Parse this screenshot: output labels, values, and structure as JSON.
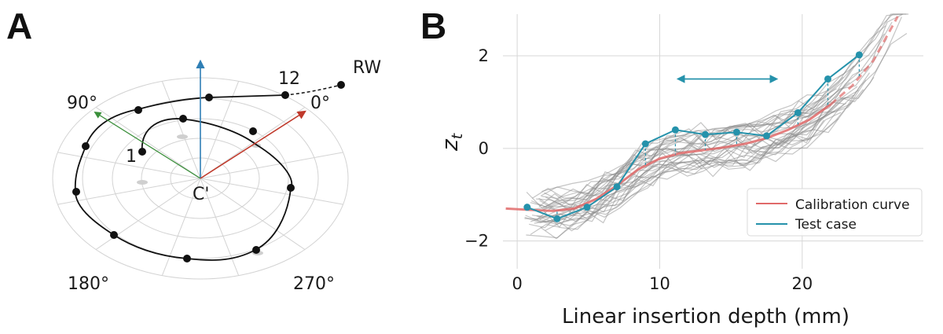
{
  "panel_a": {
    "letter": "A",
    "label_rw": "RW",
    "label_12": "12",
    "label_1": "1",
    "label_center": "C'",
    "angle_labels": [
      "90°",
      "0°",
      "180°",
      "270°"
    ],
    "colors": {
      "up_arrow": "#2f7fb5",
      "arrow_90": "#3a8f3a",
      "arrow_0": "#c0392b",
      "spiral": "#111111",
      "grid": "#d0d0d0"
    }
  },
  "panel_b": {
    "letter": "B",
    "ylabel_base": "z",
    "ylabel_sub": "t",
    "xlabel": "Linear insertion depth (mm)",
    "legend": {
      "calibration": "Calibration curve",
      "test": "Test case"
    },
    "colors": {
      "calibration": "#e06a6a",
      "test": "#2592ab",
      "background": "#8c8c8c",
      "grid": "#d7d7d7",
      "arrow": "#2592ab"
    }
  },
  "chart_data": {
    "type": "line",
    "xlabel": "Linear insertion depth (mm)",
    "ylabel": "z_t",
    "xlim": [
      -1,
      28.5
    ],
    "ylim": [
      -2.6,
      2.9
    ],
    "xticks": [
      0,
      10,
      20
    ],
    "yticks": [
      -2,
      0,
      2
    ],
    "tick_labels_x": [
      "0",
      "10",
      "20"
    ],
    "tick_labels_y": [
      "−2",
      "0",
      "2"
    ],
    "grid": true,
    "legend_position": "bottom-right",
    "series": [
      {
        "name": "Calibration curve",
        "x": [
          -0.8,
          1,
          2.5,
          4,
          5.5,
          7,
          8.5,
          10,
          11.5,
          13,
          14.5,
          16,
          17.5,
          19,
          20.5,
          22,
          23.5,
          25,
          26.7
        ],
        "values": [
          -1.3,
          -1.33,
          -1.35,
          -1.3,
          -1.1,
          -0.8,
          -0.45,
          -0.22,
          -0.1,
          -0.04,
          0.02,
          0.1,
          0.22,
          0.4,
          0.62,
          0.95,
          1.35,
          1.9,
          2.85
        ]
      },
      {
        "name": "Test case",
        "x": [
          0.7,
          2.8,
          4.9,
          7,
          9,
          11.1,
          13.2,
          15.4,
          17.5,
          19.7,
          21.8,
          24
        ],
        "values": [
          -1.27,
          -1.52,
          -1.27,
          -0.83,
          0.1,
          0.4,
          0.3,
          0.35,
          0.27,
          0.77,
          1.5,
          2.02
        ]
      }
    ],
    "annotations": [
      {
        "type": "double_arrow",
        "x_start": 11.3,
        "x_end": 18.2,
        "y": 1.5
      }
    ]
  }
}
